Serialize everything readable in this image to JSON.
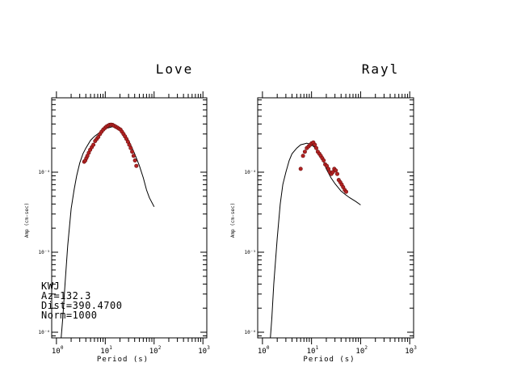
{
  "chart_data": [
    {
      "type": "scatter",
      "title": "Love",
      "xlabel": "Period (s)",
      "ylabel": "Amp (cm-sec)",
      "x_scale": "log",
      "y_scale": "log",
      "xlim": [
        0.8,
        1200
      ],
      "ylim": [
        8.5e-07,
        0.00085
      ],
      "x_ticks": [
        {
          "base": "10",
          "exp": "0"
        },
        {
          "base": "10",
          "exp": "1"
        },
        {
          "base": "10",
          "exp": "2"
        },
        {
          "base": "10",
          "exp": "3"
        }
      ],
      "y_ticks": [
        "10⁻⁶",
        "10⁻⁵",
        "10⁻⁴"
      ],
      "info": [
        "KWJ",
        "Az=132.3",
        "Dist=390.4700",
        "Norm=1000"
      ],
      "series": [
        {
          "kind": "points",
          "x": [
            3.7,
            3.9,
            4.1,
            4.3,
            4.6,
            4.9,
            5.3,
            5.7,
            6.2,
            6.7,
            7.2,
            7.8,
            8.4,
            9.1,
            9.8,
            10.5,
            11.3,
            12.2,
            13.1,
            14.1,
            15.2,
            16.4,
            17.7,
            19.0,
            20.5,
            22.0,
            23.6,
            25.3,
            27.1,
            29.0,
            31.0,
            33.2,
            35.5,
            38.0,
            40.6,
            43.4
          ],
          "y": [
            0.000135,
            0.00014,
            0.00015,
            0.00016,
            0.000175,
            0.00019,
            0.000205,
            0.00022,
            0.000245,
            0.00026,
            0.000275,
            0.0003,
            0.00032,
            0.00034,
            0.000355,
            0.00037,
            0.00038,
            0.00039,
            0.000392,
            0.00039,
            0.00038,
            0.00037,
            0.00036,
            0.00035,
            0.00034,
            0.00032,
            0.0003,
            0.00028,
            0.00026,
            0.00024,
            0.00022,
            0.0002,
            0.00018,
            0.00016,
            0.00014,
            0.00012
          ]
        },
        {
          "kind": "line",
          "x": [
            1.25,
            1.35,
            1.5,
            1.7,
            2.0,
            2.3,
            2.6,
            3.0,
            3.5,
            4.0,
            5.0,
            6.0,
            7.0,
            8.0,
            10.0,
            12.0,
            14.0,
            16.0,
            20.0,
            25.0,
            30.0,
            40.0,
            50.0,
            60.0,
            70.0,
            80.0,
            100.0
          ],
          "y": [
            8.5e-07,
            1.5e-06,
            4e-06,
            1.2e-05,
            3.5e-05,
            6e-05,
            9e-05,
            0.00013,
            0.00017,
            0.0002,
            0.00025,
            0.00028,
            0.0003,
            0.00032,
            0.00035,
            0.00036,
            0.00037,
            0.000365,
            0.00034,
            0.0003,
            0.00025,
            0.00017,
            0.00012,
            8.5e-05,
            6e-05,
            4.8e-05,
            3.7e-05
          ]
        }
      ]
    },
    {
      "type": "scatter",
      "title": "Rayl",
      "xlabel": "Period (s)",
      "ylabel": "Amp (cm-sec)",
      "x_scale": "log",
      "y_scale": "log",
      "xlim": [
        0.8,
        1200
      ],
      "ylim": [
        8.5e-07,
        0.00085
      ],
      "x_ticks": [
        {
          "base": "10",
          "exp": "0"
        },
        {
          "base": "10",
          "exp": "1"
        },
        {
          "base": "10",
          "exp": "2"
        },
        {
          "base": "10",
          "exp": "3"
        }
      ],
      "y_ticks": [
        "10⁻⁶",
        "10⁻⁵",
        "10⁻⁴"
      ],
      "series": [
        {
          "kind": "points",
          "x": [
            6.0,
            6.7,
            7.3,
            8.0,
            8.7,
            9.4,
            10.1,
            10.9,
            11.7,
            12.5,
            13.4,
            14.4,
            15.4,
            16.5,
            17.7,
            19.0,
            20.4,
            22.0,
            23.6,
            25.3,
            27.1,
            29.1,
            31.2,
            33.4,
            35.8,
            38.4,
            41.2,
            44.1,
            47.3,
            50.7
          ],
          "y": [
            0.00011,
            0.00016,
            0.00018,
            0.0002,
            0.00021,
            0.00022,
            0.00023,
            0.000235,
            0.00022,
            0.0002,
            0.00018,
            0.00017,
            0.00016,
            0.00015,
            0.00014,
            0.000125,
            0.00012,
            0.00011,
            0.0001,
            9.5e-05,
            0.0001,
            0.00011,
            0.000105,
            9.5e-05,
            8e-05,
            7.5e-05,
            7e-05,
            6.5e-05,
            6e-05,
            5.7e-05
          ]
        },
        {
          "kind": "line",
          "x": [
            1.45,
            1.55,
            1.7,
            2.0,
            2.3,
            2.6,
            3.0,
            3.5,
            4.0,
            5.0,
            6.0,
            7.0,
            8.0,
            9.0,
            10.0,
            12.0,
            14.0,
            16.0,
            18.0,
            20.0,
            25.0,
            30.0,
            40.0,
            50.0,
            60.0,
            80.0,
            100.0
          ],
          "y": [
            8.5e-07,
            1.5e-06,
            4e-06,
            1.5e-05,
            4e-05,
            7e-05,
            0.0001,
            0.00014,
            0.00017,
            0.0002,
            0.00022,
            0.000225,
            0.00023,
            0.000225,
            0.00022,
            0.0002,
            0.00018,
            0.000155,
            0.00013,
            0.00011,
            8.5e-05,
            7.2e-05,
            5.8e-05,
            5.2e-05,
            4.8e-05,
            4.3e-05,
            3.9e-05
          ]
        }
      ]
    }
  ]
}
